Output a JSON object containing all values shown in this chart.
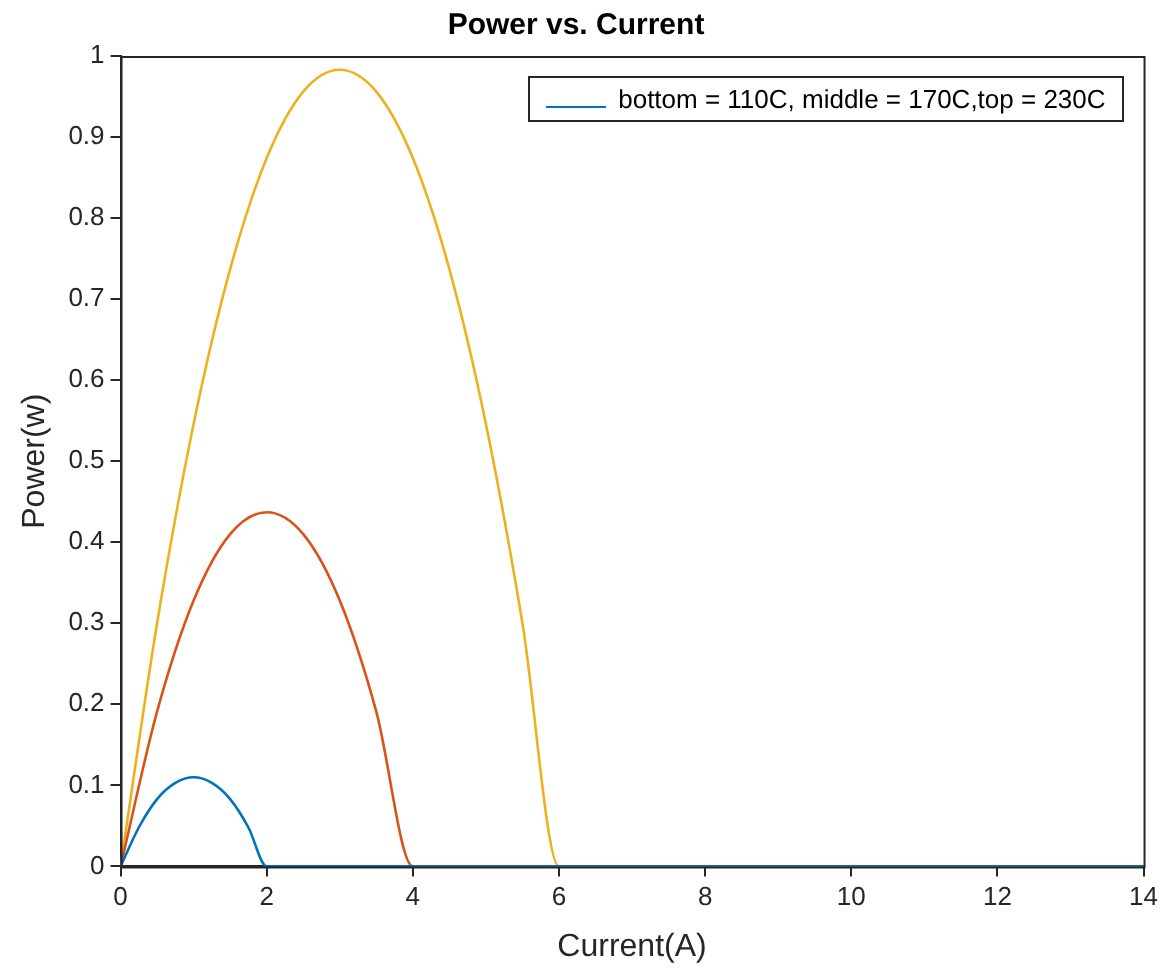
{
  "chart_data": {
    "type": "line",
    "title": "Power vs. Current",
    "xlabel": "Current(A)",
    "ylabel": "Power(w)",
    "xlim": [
      0,
      14
    ],
    "xticks": [
      0,
      2,
      4,
      6,
      8,
      10,
      12,
      14
    ],
    "ylim": [
      0,
      1
    ],
    "yticks": [
      0,
      0.1,
      0.2,
      0.3,
      0.4,
      0.5,
      0.6,
      0.7,
      0.8,
      0.9,
      1
    ],
    "grid": false,
    "legend": "top right",
    "marker": "none",
    "line_style": "solid",
    "series": [
      {
        "name": "bottom = 110C, middle = 170C,top = 230C",
        "color": "#0072bd",
        "x": [
          0,
          0.25,
          0.5,
          0.75,
          1,
          1.25,
          1.5,
          1.75,
          2,
          14
        ],
        "values": [
          0,
          0.048,
          0.083,
          0.103,
          0.11,
          0.103,
          0.083,
          0.048,
          0,
          0
        ]
      },
      {
        "color": "#d95319",
        "x": [
          0,
          0.5,
          1,
          1.5,
          2,
          2.5,
          3,
          3.5,
          4,
          14
        ],
        "values": [
          0,
          0.191,
          0.328,
          0.41,
          0.437,
          0.41,
          0.328,
          0.191,
          0,
          0
        ]
      },
      {
        "color": "#edb120",
        "x": [
          0,
          0.5,
          1,
          1.5,
          2,
          2.5,
          3,
          3.5,
          4,
          4.5,
          5,
          5.5,
          6,
          14
        ],
        "values": [
          0,
          0.3,
          0.546,
          0.737,
          0.874,
          0.956,
          0.983,
          0.956,
          0.874,
          0.737,
          0.546,
          0.3,
          0,
          0
        ]
      }
    ]
  }
}
